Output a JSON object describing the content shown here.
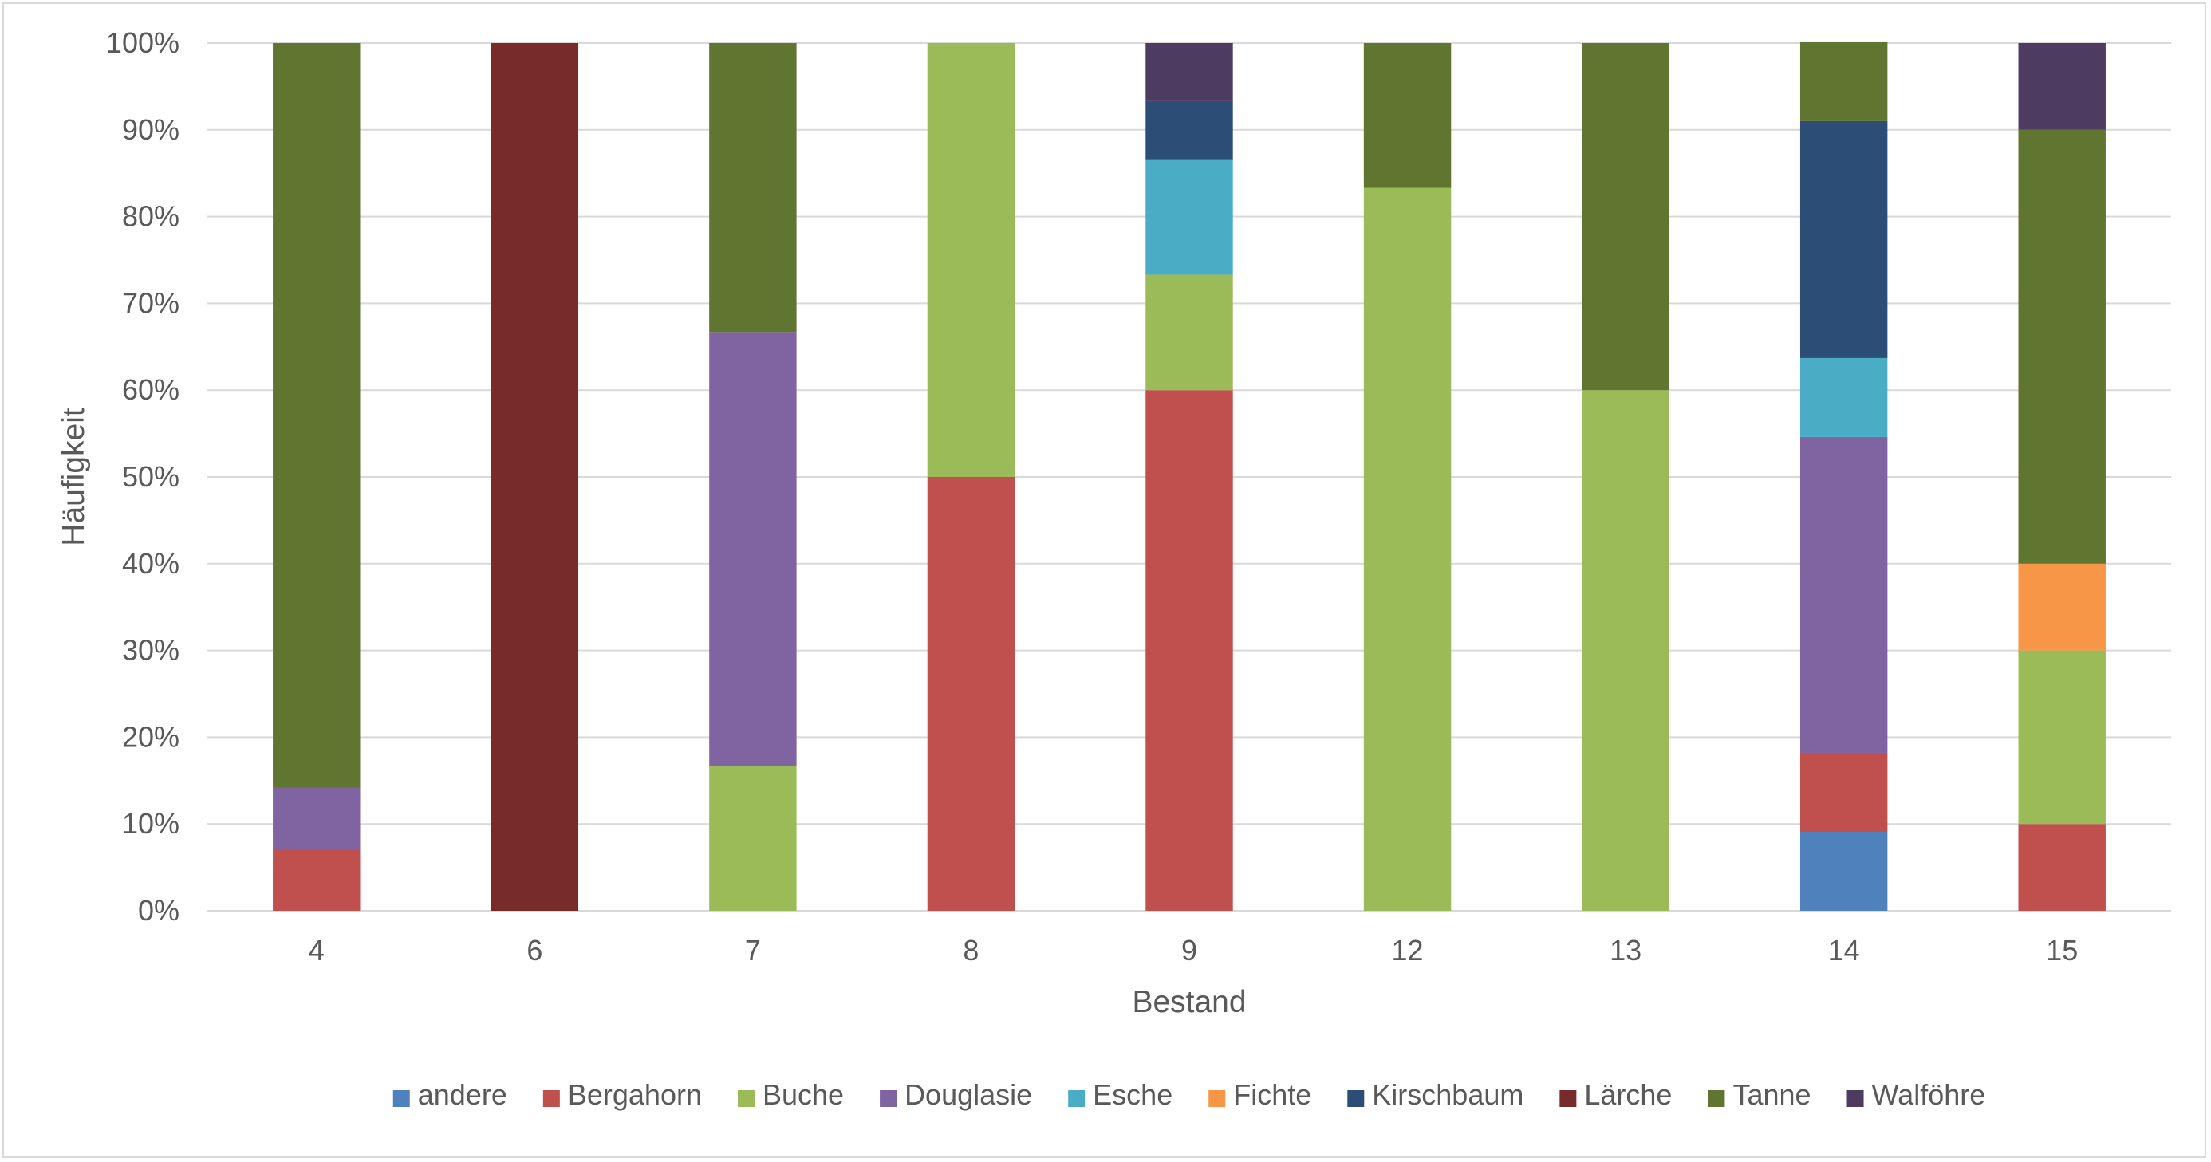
{
  "chart_data": {
    "type": "bar",
    "stacked": true,
    "normalized": true,
    "title": "",
    "xlabel": "Bestand",
    "ylabel": "Häufigkeit",
    "ylim": [
      0,
      100
    ],
    "yticks": [
      0,
      10,
      20,
      30,
      40,
      50,
      60,
      70,
      80,
      90,
      100
    ],
    "ytick_labels": [
      "0%",
      "10%",
      "20%",
      "30%",
      "40%",
      "50%",
      "60%",
      "70%",
      "80%",
      "90%",
      "100%"
    ],
    "grid": true,
    "legend_position": "bottom",
    "categories": [
      "4",
      "6",
      "7",
      "8",
      "9",
      "12",
      "13",
      "14",
      "15"
    ],
    "series": [
      {
        "name": "andere",
        "color": "#4f81bd",
        "values": [
          0,
          0,
          0,
          0,
          0,
          0,
          0,
          9.1,
          0
        ]
      },
      {
        "name": "Bergahorn",
        "color": "#c0504d",
        "values": [
          7.1,
          0,
          0,
          50,
          60,
          0,
          0,
          9.1,
          10
        ]
      },
      {
        "name": "Buche",
        "color": "#9bbb59",
        "values": [
          0,
          0,
          16.7,
          50,
          13.3,
          83.3,
          60,
          0,
          20
        ]
      },
      {
        "name": "Douglasie",
        "color": "#8064a2",
        "values": [
          7.1,
          0,
          50,
          0,
          0,
          0,
          0,
          36.4,
          0
        ]
      },
      {
        "name": "Esche",
        "color": "#4bacc6",
        "values": [
          0,
          0,
          0,
          0,
          13.3,
          0,
          0,
          9.1,
          0
        ]
      },
      {
        "name": "Fichte",
        "color": "#f79646",
        "values": [
          0,
          0,
          0,
          0,
          0,
          0,
          0,
          0,
          10
        ]
      },
      {
        "name": "Kirschbaum",
        "color": "#2c4d75",
        "values": [
          0,
          0,
          0,
          0,
          6.7,
          0,
          0,
          27.3,
          0
        ]
      },
      {
        "name": "Lärche",
        "color": "#772c2a",
        "values": [
          0,
          100,
          0,
          0,
          0,
          0,
          0,
          0,
          0
        ]
      },
      {
        "name": "Tanne",
        "color": "#5f7530",
        "values": [
          85.8,
          0,
          33.3,
          0,
          0,
          16.7,
          40,
          9.1,
          50
        ]
      },
      {
        "name": "Walföhre",
        "color": "#4d3b62",
        "values": [
          0,
          0,
          0,
          0,
          6.7,
          0,
          0,
          0,
          10
        ]
      }
    ]
  },
  "colors": {
    "gridline": "#d9d9d9",
    "axis_text": "#595959",
    "frame": "#d9d9d9"
  }
}
